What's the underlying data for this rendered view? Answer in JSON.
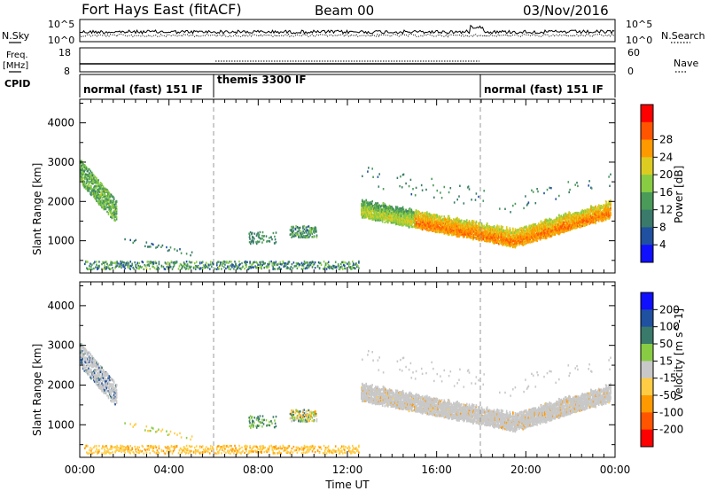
{
  "header": {
    "title": "Fort Hays East (fitACF)",
    "beam": "Beam 00",
    "date": "03/Nov/2016"
  },
  "side_labels": {
    "nsky": "N.Sky",
    "nsearch": "N.Search",
    "freq": "Freq.",
    "freq_unit": "[MHz]",
    "nave": "Nave",
    "cpid": "CPID"
  },
  "top_panels": {
    "nsky_ticks_left": [
      "10^5",
      "10^0"
    ],
    "nsky_ticks_right": [
      "10^5",
      "10^0"
    ],
    "freq_ticks_left": [
      "18",
      "8"
    ],
    "nave_ticks_right": [
      "60",
      "0"
    ]
  },
  "cpid_segments": [
    {
      "label": "normal (fast) 151 IF",
      "start_hour": 0
    },
    {
      "label": "themis 3300 IF",
      "start_hour": 6
    },
    {
      "label": "normal (fast) 151 IF",
      "start_hour": 18
    }
  ],
  "colors": {
    "power": [
      "#1010ff",
      "#2050a0",
      "#3a7a6a",
      "#4a9a5a",
      "#88cc44",
      "#dccc22",
      "#ff9900",
      "#ff5500",
      "#ff0000"
    ],
    "velocity": [
      "#1010ff",
      "#2050a0",
      "#3a7a6a",
      "#88cc44",
      "#c8c8c8",
      "#ffcc44",
      "#ff9900",
      "#ff5500",
      "#ff0000"
    ]
  },
  "chart_data": [
    {
      "type": "heatmap",
      "panel": "power",
      "xlabel": "Time UT",
      "ylabel": "Slant Range [km]",
      "x_ticks": [
        "00:00",
        "04:00",
        "08:00",
        "12:00",
        "16:00",
        "20:00",
        "00:00"
      ],
      "y_ticks": [
        1000,
        2000,
        3000,
        4000
      ],
      "xlim_hours": [
        0,
        24
      ],
      "ylim_km": [
        180,
        4600
      ],
      "colorbar": {
        "label": "Power [dB]",
        "ticks": [
          4,
          8,
          12,
          16,
          20,
          24,
          28
        ],
        "range": [
          0,
          32
        ]
      },
      "features": [
        {
          "name": "early band",
          "t_start": 0.0,
          "t_end": 1.6,
          "range_start": 2800,
          "range_end": 1700,
          "value": 14
        },
        {
          "name": "evening arc",
          "t_start": 12.6,
          "t_end": 23.8,
          "range_start": 1750,
          "range_end": 1700,
          "value": 20
        },
        {
          "name": "ground scatter",
          "t_start": 0.0,
          "t_end": 12.0,
          "range_start": 300,
          "range_end": 300,
          "value": 8
        }
      ]
    },
    {
      "type": "heatmap",
      "panel": "velocity",
      "xlabel": "Time UT",
      "ylabel": "Slant Range [km]",
      "x_ticks": [
        "00:00",
        "04:00",
        "08:00",
        "12:00",
        "16:00",
        "20:00",
        "00:00"
      ],
      "y_ticks": [
        1000,
        2000,
        3000,
        4000
      ],
      "xlim_hours": [
        0,
        24
      ],
      "ylim_km": [
        180,
        4600
      ],
      "colorbar": {
        "label": "Velocity [m s^-1]",
        "ticks": [
          200,
          100,
          50,
          15,
          -15,
          -50,
          -100,
          -200
        ]
      },
      "features": [
        {
          "name": "early band",
          "t_start": 0.0,
          "t_end": 1.6,
          "range_start": 2800,
          "range_end": 1700,
          "value": 0
        },
        {
          "name": "evening arc",
          "t_start": 12.6,
          "t_end": 23.8,
          "range_start": 1750,
          "range_end": 1700,
          "value": 0
        },
        {
          "name": "ground scatter",
          "t_start": 0.0,
          "t_end": 12.0,
          "range_start": 300,
          "range_end": 300,
          "value": -40
        }
      ]
    }
  ]
}
